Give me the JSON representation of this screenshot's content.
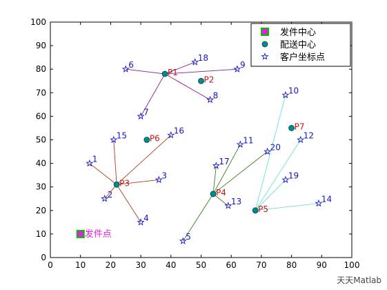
{
  "chart_data": {
    "type": "scatter",
    "xlim": [
      0,
      100
    ],
    "ylim": [
      0,
      100
    ],
    "xticks": [
      0,
      10,
      20,
      30,
      40,
      50,
      60,
      70,
      80,
      90,
      100
    ],
    "yticks": [
      0,
      10,
      20,
      30,
      40,
      50,
      60,
      70,
      80,
      90,
      100
    ],
    "grid": false,
    "legend_position": "top-right",
    "legend": [
      {
        "label": "发件中心",
        "marker": "square",
        "color": "#e020e0",
        "edge": "#00c000"
      },
      {
        "label": "配送中心",
        "marker": "circle",
        "color": "#008c8c"
      },
      {
        "label": "客户坐标点",
        "marker": "star",
        "color": "#1414c8"
      }
    ],
    "hub": {
      "label": "发件点",
      "x": 10,
      "y": 10
    },
    "centers": [
      {
        "label": "P1",
        "x": 38,
        "y": 78
      },
      {
        "label": "P2",
        "x": 50,
        "y": 75
      },
      {
        "label": "P3",
        "x": 22,
        "y": 31
      },
      {
        "label": "P4",
        "x": 54,
        "y": 27
      },
      {
        "label": "P5",
        "x": 68,
        "y": 20
      },
      {
        "label": "P6",
        "x": 32,
        "y": 50
      },
      {
        "label": "P7",
        "x": 80,
        "y": 55
      }
    ],
    "customers": [
      {
        "label": "1",
        "x": 13,
        "y": 40
      },
      {
        "label": "2",
        "x": 18,
        "y": 25
      },
      {
        "label": "3",
        "x": 36,
        "y": 33
      },
      {
        "label": "4",
        "x": 30,
        "y": 15
      },
      {
        "label": "5",
        "x": 44,
        "y": 7
      },
      {
        "label": "6",
        "x": 25,
        "y": 80
      },
      {
        "label": "7",
        "x": 30,
        "y": 60
      },
      {
        "label": "8",
        "x": 53,
        "y": 67
      },
      {
        "label": "9",
        "x": 62,
        "y": 80
      },
      {
        "label": "10",
        "x": 78,
        "y": 69
      },
      {
        "label": "11",
        "x": 63,
        "y": 48
      },
      {
        "label": "12",
        "x": 83,
        "y": 50
      },
      {
        "label": "13",
        "x": 59,
        "y": 22
      },
      {
        "label": "14",
        "x": 89,
        "y": 23
      },
      {
        "label": "15",
        "x": 21,
        "y": 50
      },
      {
        "label": "16",
        "x": 40,
        "y": 52
      },
      {
        "label": "17",
        "x": 55,
        "y": 39
      },
      {
        "label": "18",
        "x": 48,
        "y": 83
      },
      {
        "label": "19",
        "x": 78,
        "y": 33
      },
      {
        "label": "20",
        "x": 72,
        "y": 45
      }
    ],
    "assignments": [
      {
        "center": "P1",
        "customers": [
          "6",
          "7",
          "8",
          "9",
          "18"
        ],
        "color": "#8a1a8a"
      },
      {
        "center": "P3",
        "customers": [
          "1",
          "2",
          "3",
          "4",
          "15",
          "16"
        ],
        "color": "#b03a1a"
      },
      {
        "center": "P4",
        "customers": [
          "5",
          "11",
          "13",
          "17",
          "20"
        ],
        "color": "#3a7a1a"
      },
      {
        "center": "P5",
        "customers": [
          "10",
          "12",
          "14",
          "19"
        ],
        "color": "#6ee0d0"
      }
    ]
  },
  "watermark": "天天Matlab"
}
